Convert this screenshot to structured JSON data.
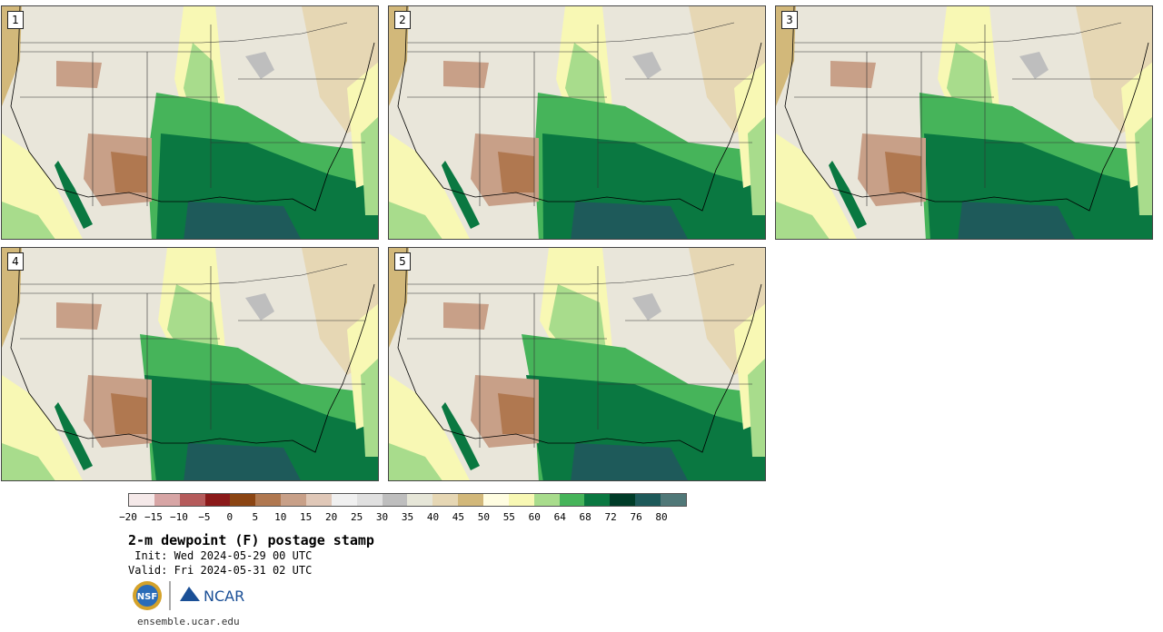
{
  "panels": [
    {
      "label": "1",
      "variant": 0
    },
    {
      "label": "2",
      "variant": 1
    },
    {
      "label": "3",
      "variant": 2
    },
    {
      "label": "4",
      "variant": 3
    },
    {
      "label": "5",
      "variant": 4
    }
  ],
  "legend": {
    "colors": [
      "#f5e9e9",
      "#d7a5a5",
      "#b55b5b",
      "#8b1a1a",
      "#8b4513",
      "#b07850",
      "#c8a088",
      "#e0c8b8",
      "#f0f0f0",
      "#e0e0e0",
      "#bebebe",
      "#e6e6d8",
      "#e6d7b4",
      "#d2b87a",
      "#fffde1",
      "#f8f8b4",
      "#a8dc8c",
      "#46b45a",
      "#0a7841",
      "#003c28",
      "#1e5a5a",
      "#507878"
    ],
    "tick_labels": [
      "−20",
      "−15",
      "−10",
      "−5",
      "0",
      "5",
      "10",
      "15",
      "20",
      "25",
      "30",
      "35",
      "40",
      "45",
      "50",
      "55",
      "60",
      "64",
      "68",
      "72",
      "76",
      "80"
    ]
  },
  "title": "2-m dewpoint (F) postage stamp",
  "init_line": " Init: Wed 2024-05-29 00 UTC",
  "valid_line": "Valid: Fri 2024-05-31 02 UTC",
  "logo": {
    "nsf_text": "NSF",
    "ncar_text": "NCAR"
  },
  "site": "ensemble.ucar.edu"
}
